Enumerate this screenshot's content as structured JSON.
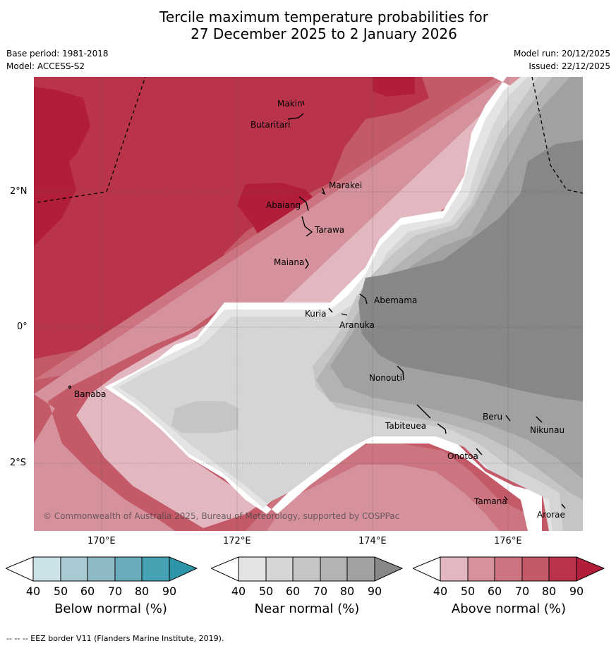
{
  "title_line1": "Tercile maximum temperature probabilities for",
  "title_line2": "27 December 2025 to 2 January 2026",
  "base_period": "Base period: 1981-2018",
  "model": "Model: ACCESS-S2",
  "model_run": "Model run: 20/12/2025",
  "issued": "Issued: 22/12/2025",
  "lat_labels": [
    "2°N",
    "0°",
    "2°S"
  ],
  "lon_labels": [
    "170°E",
    "172°E",
    "174°E",
    "176°E"
  ],
  "places": [
    "Makin",
    "Butaritari",
    "Marakei",
    "Abaiang",
    "Tarawa",
    "Maiana",
    "Abemama",
    "Kuria",
    "Aranuka",
    "Nonouti",
    "Banaba",
    "Tabiteuea",
    "Beru",
    "Nikunau",
    "Onotoa",
    "Tamana",
    "Arorae"
  ],
  "copyright": "© Commonwealth of Australia 2025, Bureau of Meteorology, supported by COSPPac",
  "colorbars": [
    {
      "title": "Below normal (%)",
      "ticks": [
        "40",
        "50",
        "60",
        "70",
        "80",
        "90"
      ],
      "colors": [
        "#ffffff",
        "#cbe2e9",
        "#a9cad2",
        "#8ebac5",
        "#6aacbc",
        "#46a2b3",
        "#2c95a7"
      ]
    },
    {
      "title": "Near normal (%)",
      "ticks": [
        "40",
        "50",
        "60",
        "70",
        "80",
        "90"
      ],
      "colors": [
        "#ffffff",
        "#e4e4e4",
        "#d5d5d5",
        "#c5c5c5",
        "#b3b3b3",
        "#a1a1a1",
        "#878787"
      ]
    },
    {
      "title": "Above normal (%)",
      "ticks": [
        "40",
        "50",
        "60",
        "70",
        "80",
        "90"
      ],
      "colors": [
        "#ffffff",
        "#e2b7bf",
        "#d6929c",
        "#cc7480",
        "#c45a68",
        "#b9344b",
        "#b21e3a"
      ]
    }
  ],
  "footer": "--  --  -- EEZ border V11 (Flanders Marine Institute, 2019)."
}
